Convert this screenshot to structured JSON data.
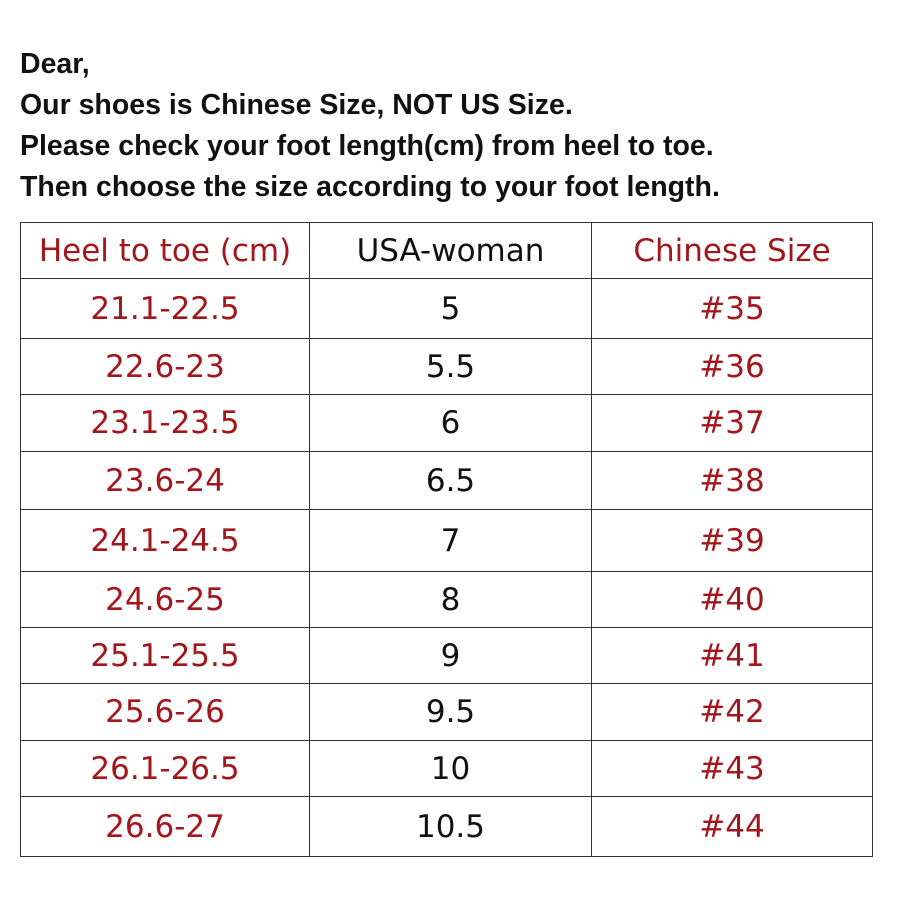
{
  "intro": [
    "Dear,",
    "Our shoes is Chinese Size, NOT US Size.",
    "Please check your foot length(cm) from heel to toe.",
    "Then choose the size according to your foot length."
  ],
  "table": {
    "headers": [
      "Heel to toe (cm)",
      "USA-woman",
      "Chinese Size"
    ],
    "rows": [
      [
        "21.1-22.5",
        "5",
        "#35"
      ],
      [
        "22.6-23",
        "5.5",
        "#36"
      ],
      [
        "23.1-23.5",
        "6",
        "#37"
      ],
      [
        "23.6-24",
        "6.5",
        "#38"
      ],
      [
        "24.1-24.5",
        "7",
        "#39"
      ],
      [
        "24.6-25",
        "8",
        "#40"
      ],
      [
        "25.1-25.5",
        "9",
        "#41"
      ],
      [
        "25.6-26",
        "9.5",
        "#42"
      ],
      [
        "26.1-26.5",
        "10",
        "#43"
      ],
      [
        "26.6-27",
        "10.5",
        "#44"
      ]
    ]
  },
  "colors": {
    "accent": "#a3161c",
    "text": "#111111"
  }
}
